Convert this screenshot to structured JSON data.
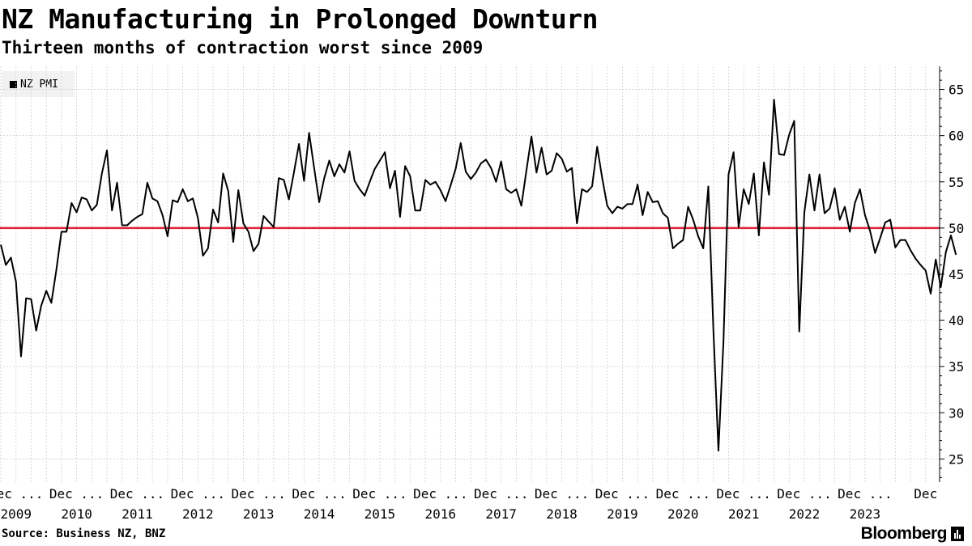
{
  "header": {
    "title": "NZ Manufacturing in Prolonged Downturn",
    "subtitle": "Thirteen months of contraction worst since 2009"
  },
  "footer": {
    "source": "Source: Business NZ, BNZ",
    "brand": "Bloomberg"
  },
  "colors": {
    "line": "#000000",
    "reference": "#e0253a",
    "grid": "#cfcfcf"
  },
  "chart_data": {
    "type": "line",
    "title": "NZ Manufacturing in Prolonged Downturn",
    "subtitle": "Thirteen months of contraction worst since 2009",
    "ylim": [
      22.5,
      67.5
    ],
    "y_ticks": [
      25,
      30,
      35,
      40,
      45,
      50,
      55,
      60,
      65
    ],
    "y_axis_side": "right",
    "grid": true,
    "legend": {
      "placement": "top-left",
      "entries": [
        "NZ PMI"
      ]
    },
    "reference_line": {
      "y": 50
    },
    "x_ticks": [
      {
        "month": "Dec 2008",
        "top": "Dec ...",
        "bottom": "2009"
      },
      {
        "month": "Dec 2009",
        "top": "Dec ...",
        "bottom": "2010"
      },
      {
        "month": "Dec 2010",
        "top": "Dec ...",
        "bottom": "2011"
      },
      {
        "month": "Dec 2011",
        "top": "Dec ...",
        "bottom": "2012"
      },
      {
        "month": "Dec 2012",
        "top": "Dec ...",
        "bottom": "2013"
      },
      {
        "month": "Dec 2013",
        "top": "Dec ...",
        "bottom": "2014"
      },
      {
        "month": "Dec 2014",
        "top": "Dec ...",
        "bottom": "2015"
      },
      {
        "month": "Dec 2015",
        "top": "Dec ...",
        "bottom": "2016"
      },
      {
        "month": "Dec 2016",
        "top": "Dec ...",
        "bottom": "2017"
      },
      {
        "month": "Dec 2017",
        "top": "Dec ...",
        "bottom": "2018"
      },
      {
        "month": "Dec 2018",
        "top": "Dec ...",
        "bottom": "2019"
      },
      {
        "month": "Dec 2019",
        "top": "Dec ...",
        "bottom": "2020"
      },
      {
        "month": "Dec 2020",
        "top": "Dec ...",
        "bottom": "2021"
      },
      {
        "month": "Dec 2021",
        "top": "Dec ...",
        "bottom": "2022"
      },
      {
        "month": "Dec 2022",
        "top": "Dec ...",
        "bottom": "2023"
      },
      {
        "month": "Dec 2023",
        "top": "Dec",
        "bottom": ""
      }
    ],
    "x_start": "Sep 2008",
    "x_end": "Jan 2024",
    "series": [
      {
        "name": "NZ PMI",
        "values": [
          48.2,
          46.0,
          46.8,
          44.2,
          36.1,
          42.4,
          42.3,
          38.9,
          41.6,
          43.2,
          41.9,
          45.5,
          49.6,
          49.6,
          52.7,
          51.7,
          53.3,
          53.1,
          51.9,
          52.5,
          55.9,
          58.4,
          51.9,
          54.9,
          50.3,
          50.3,
          50.8,
          51.2,
          51.5,
          54.9,
          53.2,
          52.9,
          51.4,
          49.1,
          53.0,
          52.8,
          54.2,
          52.9,
          53.2,
          51.1,
          47.0,
          47.8,
          52.0,
          50.6,
          55.9,
          54.0,
          48.5,
          54.1,
          50.5,
          49.6,
          47.5,
          48.3,
          51.3,
          50.7,
          50.1,
          55.4,
          55.2,
          53.1,
          56.0,
          59.1,
          55.1,
          60.3,
          56.5,
          52.8,
          55.4,
          57.3,
          55.6,
          56.9,
          56.0,
          58.3,
          55.1,
          54.2,
          53.5,
          55.0,
          56.4,
          57.3,
          58.2,
          54.3,
          56.2,
          51.2,
          56.7,
          55.6,
          51.9,
          51.9,
          55.2,
          54.7,
          55.0,
          54.1,
          52.9,
          54.6,
          56.4,
          59.2,
          56.1,
          55.3,
          56.0,
          57.0,
          57.4,
          56.5,
          55.0,
          57.2,
          54.2,
          53.8,
          54.2,
          52.4,
          56.2,
          59.9,
          56.0,
          58.7,
          55.8,
          56.2,
          58.1,
          57.5,
          56.1,
          56.5,
          50.5,
          54.2,
          53.9,
          54.5,
          58.8,
          55.4,
          52.4,
          51.6,
          52.3,
          52.1,
          52.6,
          52.6,
          54.7,
          51.4,
          53.9,
          52.8,
          52.9,
          51.6,
          51.1,
          47.8,
          48.3,
          48.7,
          52.3,
          50.9,
          49.1,
          47.8,
          54.5,
          39.0,
          25.9,
          37.8,
          55.8,
          58.2,
          50.1,
          54.2,
          52.6,
          55.9,
          49.2,
          57.1,
          53.6,
          63.9,
          58.0,
          57.9,
          60.1,
          61.6,
          38.8,
          51.7,
          55.8,
          51.9,
          55.8,
          51.6,
          52.1,
          54.3,
          50.9,
          52.3,
          49.6,
          52.7,
          54.2,
          51.4,
          49.7,
          47.3,
          48.9,
          50.6,
          50.9,
          47.9,
          48.7,
          48.7,
          47.6,
          46.7,
          46.0,
          45.4,
          42.9,
          46.6,
          43.6,
          47.4,
          49.2,
          47.1
        ]
      }
    ]
  }
}
